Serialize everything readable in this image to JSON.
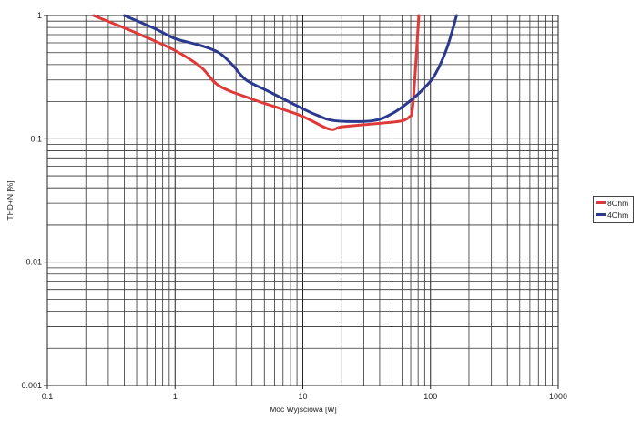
{
  "chart_data": {
    "type": "line",
    "title": "",
    "xlabel": "Moc Wyjściowa [W]",
    "ylabel": "THD+N [%]",
    "xscale": "log",
    "yscale": "log",
    "xlim": [
      0.1,
      1000
    ],
    "ylim": [
      0.001,
      1
    ],
    "x_ticks": [
      "0.1",
      "1",
      "10",
      "100",
      "1000"
    ],
    "y_ticks": [
      "1",
      "0.1",
      "0.01",
      "0.001"
    ],
    "grid": true,
    "legend_position": "right",
    "series": [
      {
        "name": "8Ohm",
        "color": "#e0393a",
        "x": [
          0.23,
          0.5,
          1.0,
          1.6,
          2.2,
          4.0,
          9.5,
          16,
          20,
          30,
          45,
          60,
          68,
          72,
          76,
          81
        ],
        "y": [
          1.0,
          0.72,
          0.52,
          0.38,
          0.27,
          0.21,
          0.155,
          0.12,
          0.125,
          0.13,
          0.135,
          0.14,
          0.15,
          0.17,
          0.35,
          1.0
        ]
      },
      {
        "name": "4Ohm",
        "color": "#2b3a8f",
        "x": [
          0.4,
          0.7,
          1.0,
          1.6,
          2.2,
          2.8,
          3.6,
          5.5,
          9.5,
          13,
          18,
          35,
          50,
          68,
          90,
          110,
          135,
          160
        ],
        "y": [
          1.0,
          0.78,
          0.65,
          0.57,
          0.5,
          0.4,
          0.3,
          0.24,
          0.18,
          0.155,
          0.14,
          0.14,
          0.16,
          0.2,
          0.26,
          0.34,
          0.55,
          1.0
        ]
      }
    ]
  },
  "legend": {
    "items": [
      {
        "label": "8Ohm",
        "color": "#e0393a"
      },
      {
        "label": "4Ohm",
        "color": "#2b3a8f"
      }
    ]
  }
}
